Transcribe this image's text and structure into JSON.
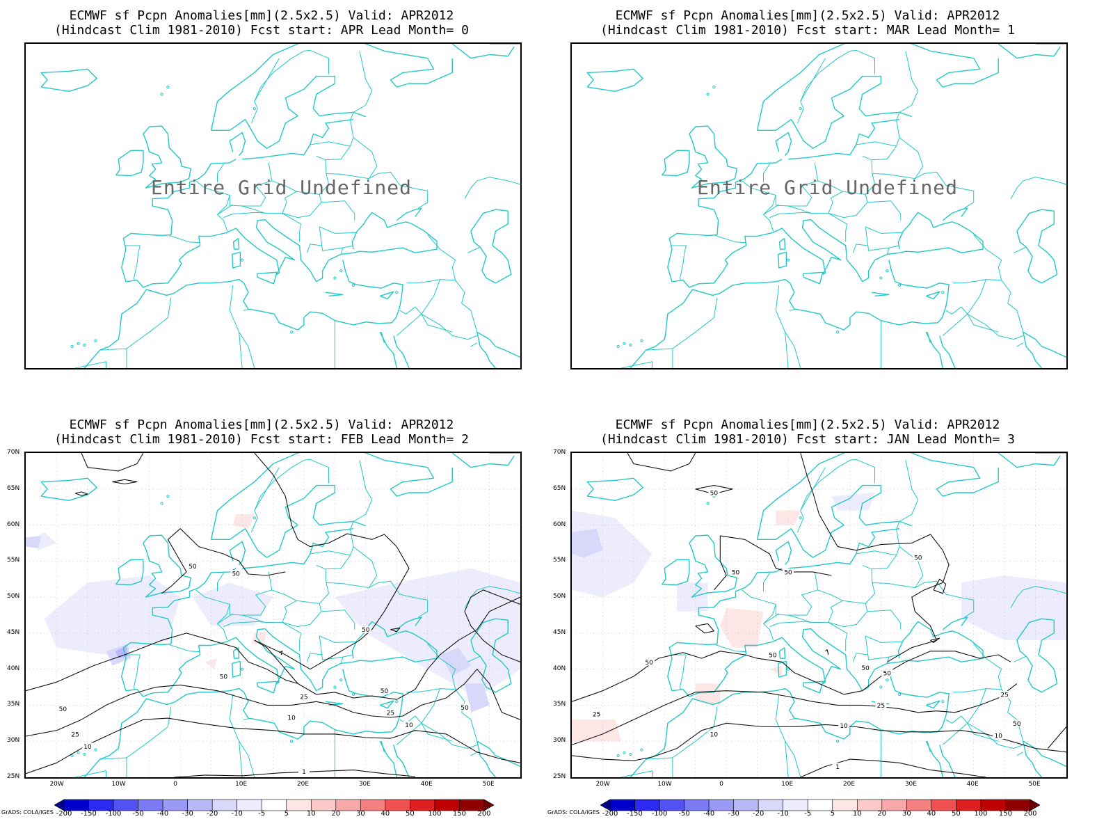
{
  "panels": [
    {
      "title1": "ECMWF sf Pcpn Anomalies[mm](2.5x2.5) Valid: APR2012",
      "title2": "(Hindcast Clim 1981-2010) Fcst start: APR  Lead Month= 0",
      "message": "Entire Grid Undefined"
    },
    {
      "title1": "ECMWF sf Pcpn Anomalies[mm](2.5x2.5) Valid: APR2012",
      "title2": "(Hindcast Clim 1981-2010) Fcst start: MAR  Lead Month= 1",
      "message": "Entire Grid Undefined"
    },
    {
      "title1": "ECMWF sf Pcpn Anomalies[mm](2.5x2.5) Valid: APR2012",
      "title2": "(Hindcast Clim 1981-2010) Fcst start: FEB  Lead Month= 2",
      "message": ""
    },
    {
      "title1": "ECMWF sf Pcpn Anomalies[mm](2.5x2.5) Valid: APR2012",
      "title2": "(Hindcast Clim 1981-2010) Fcst start: JAN  Lead Month= 3",
      "message": ""
    }
  ],
  "axes": {
    "lat_labels": [
      "70N",
      "65N",
      "60N",
      "55N",
      "50N",
      "45N",
      "40N",
      "35N",
      "30N",
      "25N"
    ],
    "lon_labels": [
      "20W",
      "10W",
      "0",
      "10E",
      "20E",
      "30E",
      "40E",
      "50E"
    ]
  },
  "colorbar": {
    "labels": [
      "-200",
      "-150",
      "-100",
      "-50",
      "-40",
      "-30",
      "-20",
      "-10",
      "-5",
      "5",
      "10",
      "20",
      "30",
      "40",
      "50",
      "100",
      "150",
      "200"
    ],
    "colors": [
      "#00008b",
      "#0000cd",
      "#2a2af0",
      "#5252f2",
      "#7a7af4",
      "#9a9af6",
      "#b8b8f8",
      "#d8d8fb",
      "#ececfd",
      "#ffffff",
      "#fde6e6",
      "#fbc8c8",
      "#f8a8a8",
      "#f58080",
      "#f05050",
      "#e02020",
      "#c00000",
      "#900000",
      "#6a0000"
    ]
  },
  "credit": "GrADS: COLA/IGES",
  "coast_color": "#20c8c8",
  "contour_labels_p3": [
    "50",
    "50",
    "50",
    "50",
    "50",
    "25",
    "25",
    "25",
    "10",
    "10",
    "10",
    "50",
    "50",
    "1"
  ],
  "contour_labels_p4": [
    "50",
    "50",
    "50",
    "50",
    "50",
    "50",
    "50",
    "50",
    "25",
    "25",
    "25",
    "10",
    "10",
    "10",
    "50",
    "1"
  ]
}
